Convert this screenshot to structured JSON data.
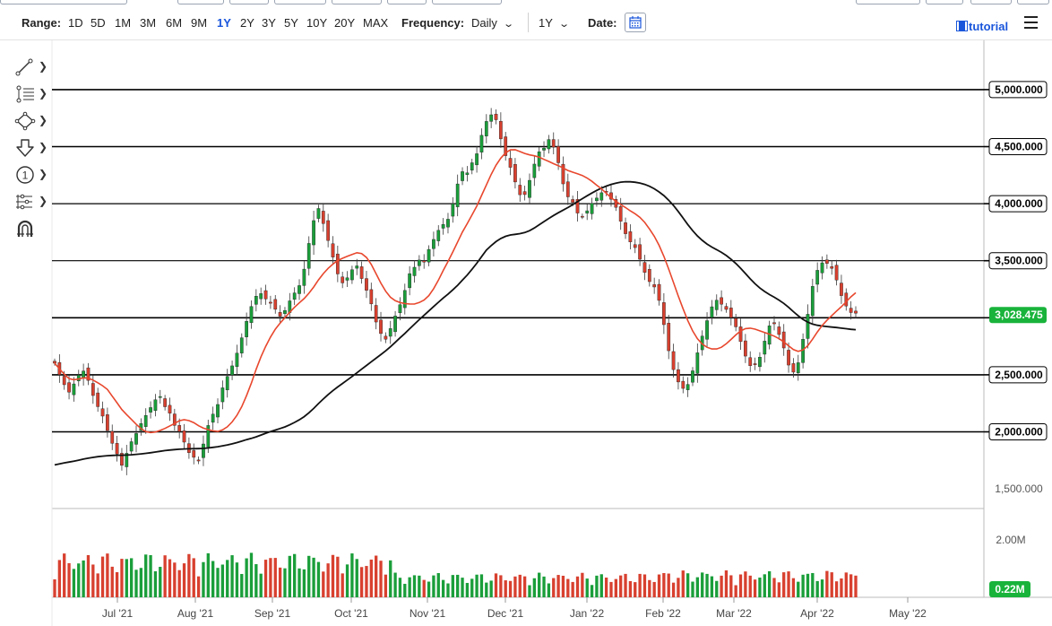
{
  "toolbar": {
    "range_label": "Range:",
    "ranges": [
      "1D",
      "5D",
      "1M",
      "3M",
      "6M",
      "9M",
      "1Y",
      "2Y",
      "3Y",
      "5Y",
      "10Y",
      "20Y",
      "MAX"
    ],
    "selected_range": "1Y",
    "frequency_label": "Frequency:",
    "frequency_value": "Daily",
    "period_value": "1Y",
    "date_label": "Date:",
    "tutorial_label": "tutorial"
  },
  "drawing_tools": [
    "trendline-icon",
    "fibonacci-icon",
    "shape-icon",
    "arrow-down-icon",
    "numbered-marker-icon",
    "measure-icon",
    "magnet-icon"
  ],
  "chart_data": {
    "type": "candlestick",
    "price_axis": {
      "ticks": [
        "5,000.000",
        "4,500.000",
        "4,000.000",
        "3,500.000",
        "3,000.000",
        "2,500.000",
        "2,000.000",
        "1,500.000"
      ],
      "range": [
        1250,
        5300
      ]
    },
    "volume_axis": {
      "ticks": [
        "2.00M"
      ]
    },
    "x_labels": [
      "Jul '21",
      "Aug '21",
      "Sep '21",
      "Oct '21",
      "Nov '21",
      "Dec '21",
      "Jan '22",
      "Feb '22",
      "Mar '22",
      "Apr '22",
      "May '22"
    ],
    "horizontal_levels": [
      5000,
      4500,
      4000,
      3500,
      3000,
      2500,
      2000
    ],
    "highlighted_levels": [
      "5,000.000",
      "4,500.000",
      "4,000.000",
      "3,500.000",
      "2,500.000",
      "2,000.000"
    ],
    "last_price": "3,028.475",
    "last_volume": "0.22M",
    "colors": {
      "up": "#1a9e3a",
      "down": "#d8402f",
      "ma_fast": "#e8472d",
      "ma_slow": "#111111",
      "last_badge": "#19b33b"
    },
    "series": [
      {
        "name": "",
        "values": [
          2601.56,
          2500.98,
          2413.08,
          2347.88,
          2420.02,
          2497.05,
          2533.42,
          2450.86,
          2318.29,
          2220.66,
          2137.74,
          2011.14,
          1899.3,
          1805.34,
          1706.27,
          1811.94,
          1913.48,
          1985.44,
          2073.15,
          2143.94,
          2212.79,
          2281.43,
          2309.72,
          2219.83,
          2163.48,
          2056.34,
          2002.68,
          1909.74,
          1817.39,
          1776.6,
          1747.02,
          1893.59,
          2055.66,
          2155.53,
          2239.83,
          2385.73,
          2485.59,
          2578.46,
          2690.14,
          2824.42,
          2969.48,
          3098.91,
          3189.25,
          3211.92,
          3164.48,
          3132.84,
          3073.88,
          3012.82,
          3063.51,
          3147.81,
          3217.81,
          3282.02,
          3426.2,
          3651.57,
          3851.76,
          3957.7,
          3825.48,
          3677.13,
          3531.6,
          3384.02,
          3305.55,
          3350.72,
          3420.78,
          3454.7,
          3343.64,
          3240.55,
          3121.46,
          2962.66,
          2861.48,
          2811.33,
          2905.31,
          3015.2,
          3114.33,
          3239.58,
          3386.85,
          3442.73,
          3506.04,
          3487.53,
          3599.05,
          3686.63,
          3766.13,
          3817.97,
          3864.06,
          4000.0,
          4172.96,
          4280.86,
          4270.45,
          4358.63,
          4437.98,
          4599.47,
          4721.12,
          4779.19,
          4735.51,
          4567.84,
          4420.76,
          4318.27,
          4190.26,
          4078.46,
          4079.66,
          4204.65,
          4346.96,
          4455.64,
          4487.18,
          4562.19,
          4495.82,
          4358.71,
          4173.46,
          4059.7,
          4011.19,
          3917.73,
          3888.24,
          3937.59,
          4002.1,
          4049.38,
          4096.1,
          4103.13,
          4038.37,
          3968.03,
          3846.0,
          3736.2,
          3664.31,
          3615.2,
          3512.9,
          3397.29,
          3316.73,
          3269.74,
          3152.01,
          2939.45,
          2710.98,
          2545.26,
          2437.07,
          2380.74,
          2415.75,
          2534.87,
          2692.79,
          2838.98,
          2974.76,
          3096.19,
          3153.52,
          3118.68,
          3072.88,
          3001.97,
          2920.41,
          2791.18,
          2663.77,
          2579.33,
          2593.8,
          2654.3,
          2795.24,
          2929.23,
          2946.86,
          2853.01,
          2734.87,
          2585.19,
          2523.24,
          2606.07,
          2811.56,
          3030.53,
          3274.95,
          3415.81,
          3481.61,
          3475.9,
          3433.14,
          3330.42,
          3194.11,
          3102.96,
          3045.48,
          3040.06
        ]
      },
      {
        "name": "",
        "values": []
      },
      {
        "name": "",
        "values": []
      }
    ]
  }
}
